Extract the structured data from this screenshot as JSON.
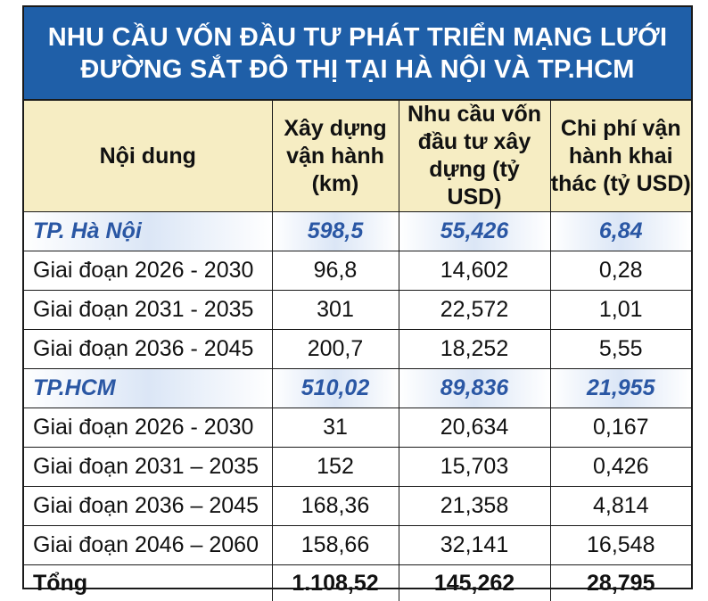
{
  "title": {
    "line1": "NHU CẦU VỐN ĐẦU TƯ PHÁT TRIỂN MẠNG LƯỚI",
    "line2": "ĐƯỜNG SẮT ĐÔ THỊ TẠI HÀ NỘI VÀ TP.HCM"
  },
  "headers": [
    [
      "Nội dung"
    ],
    [
      "Xây dựng",
      "vận hành",
      "(km)"
    ],
    [
      "Nhu cầu vốn",
      "đầu tư xây",
      "dựng (tỷ USD)"
    ],
    [
      "Chi phí vận",
      "hành khai",
      "thác (tỷ USD)"
    ]
  ],
  "rows": [
    [
      "TP. Hà Nội",
      "598,5",
      "55,426",
      "6,84"
    ],
    [
      "Giai đoạn 2026 - 2030",
      "96,8",
      "14,602",
      "0,28"
    ],
    [
      "Giai đoạn 2031 - 2035",
      "301",
      "22,572",
      "1,01"
    ],
    [
      "Giai đoạn 2036 - 2045",
      "200,7",
      "18,252",
      "5,55"
    ],
    [
      "TP.HCM",
      "510,02",
      "89,836",
      "21,955"
    ],
    [
      "Giai đoạn 2026 - 2030",
      "31",
      "20,634",
      "0,167"
    ],
    [
      "Giai đoạn 2031 – 2035",
      "152",
      "15,703",
      "0,426"
    ],
    [
      "Giai đoạn 2036 – 2045",
      "168,36",
      "21,358",
      "4,814"
    ],
    [
      "Giai đoạn 2046 – 2060",
      "158,66",
      "32,141",
      "16,548"
    ],
    [
      "Tổng",
      "1.108,52",
      "145,262",
      "28,795"
    ]
  ]
}
